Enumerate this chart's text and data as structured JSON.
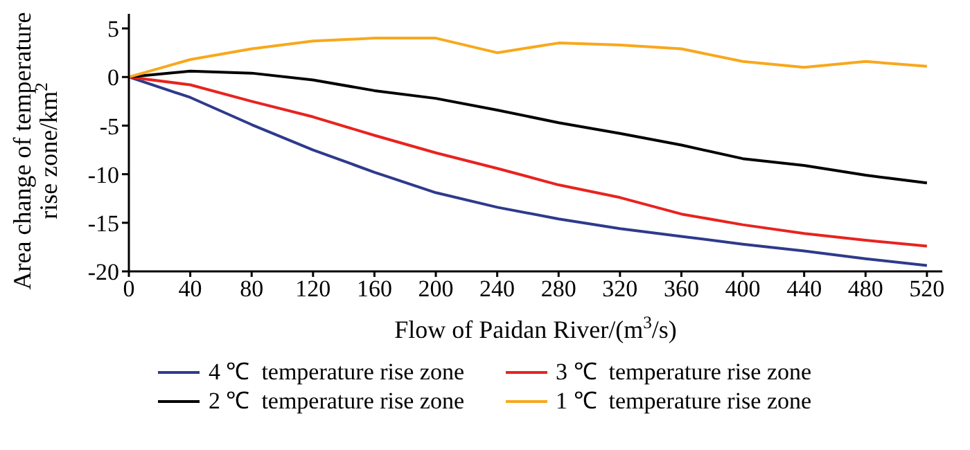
{
  "chart_data": {
    "type": "line",
    "xlabel": "Flow of Paidan River/(m$^{3}$/s)",
    "ylabel": "Area change of temperature rise zone/km$^{2}$",
    "x": [
      0,
      40,
      80,
      120,
      160,
      200,
      240,
      280,
      320,
      360,
      400,
      440,
      480,
      520
    ],
    "xlim": [
      0,
      530
    ],
    "xticks": [
      0,
      40,
      80,
      120,
      160,
      200,
      240,
      280,
      320,
      360,
      400,
      440,
      480,
      520
    ],
    "ylim": [
      -20,
      6.5
    ],
    "yticks": [
      -20,
      -15,
      -10,
      -5,
      0,
      5
    ],
    "grid": false,
    "legend": "bottom",
    "marker": "none",
    "line_style": "solid",
    "series": [
      {
        "name": "4 ℃  temperature rise zone",
        "color": "#2e3a8c",
        "values": [
          0,
          -2.1,
          -4.9,
          -7.5,
          -9.8,
          -11.9,
          -13.4,
          -14.6,
          -15.6,
          -16.4,
          -17.2,
          -17.9,
          -18.7,
          -19.4
        ]
      },
      {
        "name": "3 ℃  temperature rise zone",
        "color": "#e8231f",
        "values": [
          0,
          -0.8,
          -2.5,
          -4.1,
          -6.0,
          -7.8,
          -9.4,
          -11.1,
          -12.4,
          -14.1,
          -15.2,
          -16.1,
          -16.8,
          -17.4
        ]
      },
      {
        "name": "2 ℃  temperature rise zone",
        "color": "#000000",
        "values": [
          0,
          0.6,
          0.4,
          -0.3,
          -1.4,
          -2.2,
          -3.4,
          -4.7,
          -5.8,
          -7.0,
          -8.4,
          -9.1,
          -10.1,
          -10.9
        ]
      },
      {
        "name": "1 ℃  temperature rise zone",
        "color": "#f8a81c",
        "values": [
          0,
          1.8,
          2.9,
          3.7,
          4.0,
          4.0,
          2.5,
          3.5,
          3.3,
          2.9,
          1.6,
          1.0,
          1.6,
          1.1
        ]
      }
    ]
  }
}
